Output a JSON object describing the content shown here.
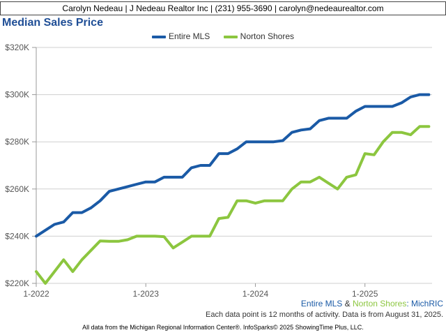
{
  "header": {
    "text": "Carolyn Nedeau | J Nedeau Realtor Inc | (231) 955-3690 | carolyn@nedeaurealtor.com"
  },
  "footer": {
    "source_mls": "Entire MLS",
    "source_amp": " & ",
    "source_area": "Norton Shores",
    "source_suffix": ": MichRIC",
    "note": "Each data point is 12 months of activity. Data is from August 31, 2025.",
    "copyright": "All data from the Michigan Regional Information Center®. InfoSparks© 2025 ShowingTime Plus, LLC."
  },
  "colors": {
    "entire_mls": "#1a5aa6",
    "norton_shores": "#8cc63f",
    "title": "#1f4e96"
  },
  "chart_data": {
    "type": "line",
    "title": "Median Sales Price",
    "x": [
      "2022-01",
      "2022-02",
      "2022-03",
      "2022-04",
      "2022-05",
      "2022-06",
      "2022-07",
      "2022-08",
      "2022-09",
      "2022-10",
      "2022-11",
      "2022-12",
      "2023-01",
      "2023-02",
      "2023-03",
      "2023-04",
      "2023-05",
      "2023-06",
      "2023-07",
      "2023-08",
      "2023-09",
      "2023-10",
      "2023-11",
      "2023-12",
      "2024-01",
      "2024-02",
      "2024-03",
      "2024-04",
      "2024-05",
      "2024-06",
      "2024-07",
      "2024-08",
      "2024-09",
      "2024-10",
      "2024-11",
      "2024-12",
      "2025-01",
      "2025-02",
      "2025-03",
      "2025-04",
      "2025-05",
      "2025-06",
      "2025-07",
      "2025-08"
    ],
    "x_tick_labels": [
      "1-2022",
      "1-2023",
      "1-2024",
      "1-2025"
    ],
    "x_tick_values": [
      "2022-01",
      "2023-01",
      "2024-01",
      "2025-01"
    ],
    "ylim": [
      220000,
      320000
    ],
    "y_ticks": [
      220000,
      240000,
      260000,
      280000,
      300000,
      320000
    ],
    "y_tick_labels": [
      "$220K",
      "$240K",
      "$260K",
      "$280K",
      "$300K",
      "$320K"
    ],
    "grid": true,
    "legend_position": "top-center",
    "series": [
      {
        "name": "Entire MLS",
        "values": [
          240000,
          242500,
          245000,
          246000,
          250000,
          250000,
          252000,
          255000,
          259000,
          260000,
          261000,
          262000,
          263000,
          263000,
          265000,
          265000,
          265000,
          269000,
          270000,
          270000,
          275000,
          275000,
          277000,
          280000,
          280000,
          280000,
          280000,
          280500,
          284000,
          285000,
          285500,
          289000,
          290000,
          290000,
          290000,
          293000,
          295000,
          295000,
          295000,
          295000,
          296500,
          299000,
          300000,
          300000
        ]
      },
      {
        "name": "Norton Shores",
        "values": [
          225000,
          220000,
          225000,
          230000,
          225000,
          230000,
          234000,
          238000,
          237800,
          237800,
          238500,
          240000,
          240000,
          240000,
          239800,
          235000,
          237500,
          240000,
          240000,
          240000,
          247500,
          248000,
          255000,
          255000,
          254000,
          255000,
          255000,
          255000,
          260000,
          263000,
          263000,
          265000,
          262500,
          260000,
          265000,
          266000,
          275000,
          274500,
          280000,
          284000,
          284000,
          283000,
          286500,
          286500
        ]
      }
    ]
  }
}
